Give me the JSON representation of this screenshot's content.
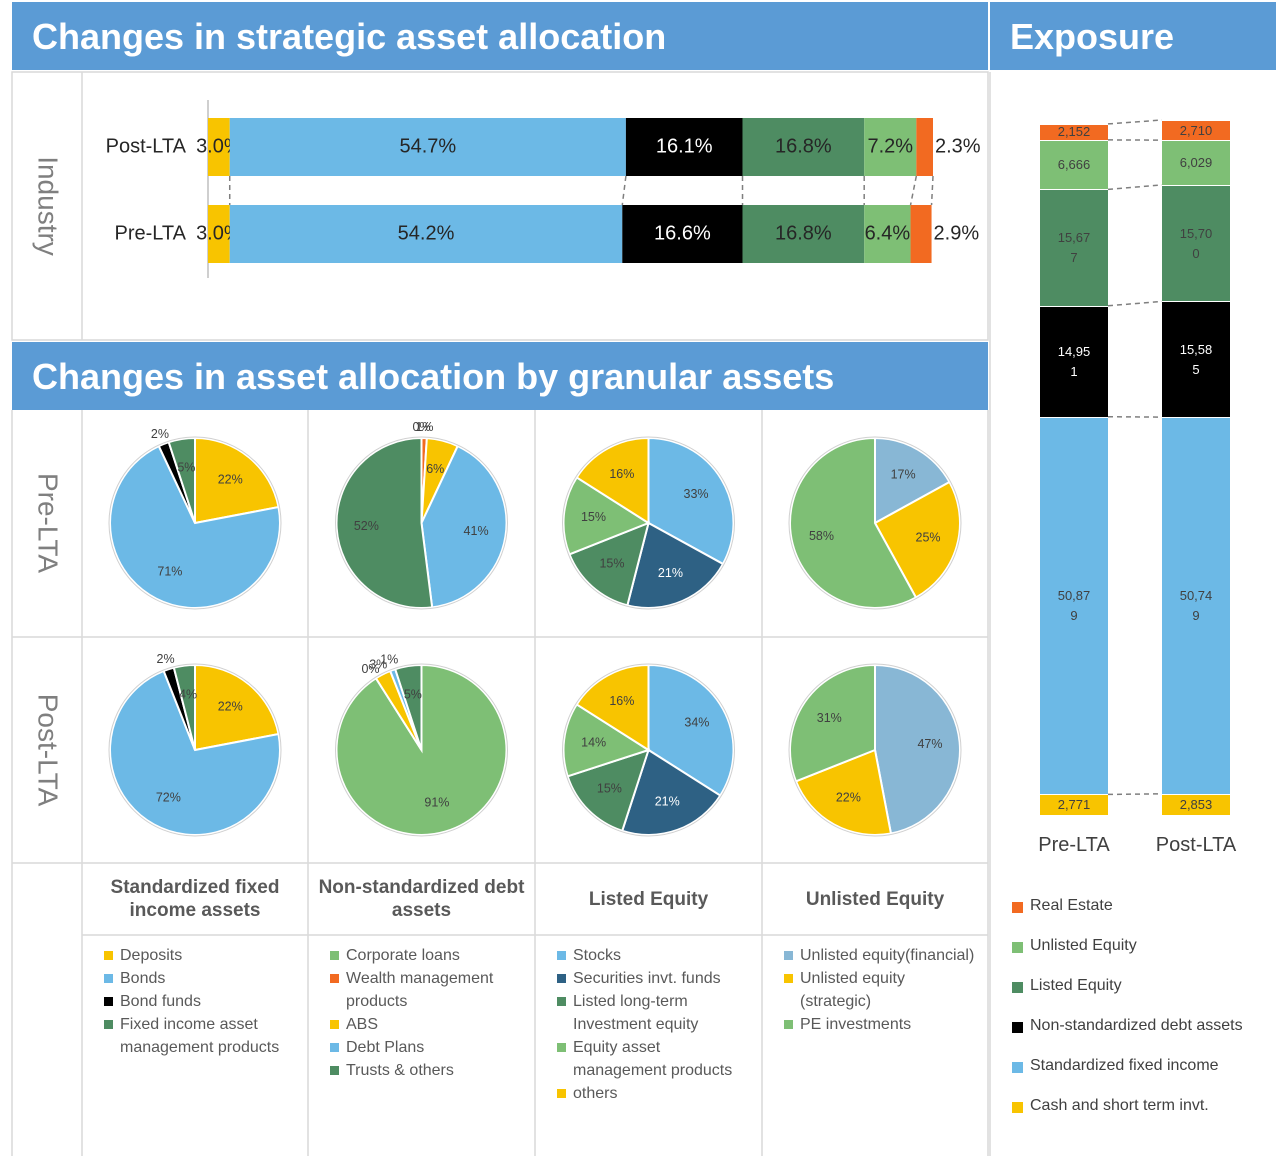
{
  "chart_data": [
    {
      "type": "bar",
      "orientation": "horizontal",
      "stacked": true,
      "title": "Changes in strategic asset allocation",
      "y_label": "Industry",
      "categories": [
        "Post-LTA",
        "Pre-LTA"
      ],
      "series": [
        {
          "color": "#f8c400",
          "values": [
            3.0,
            3.0
          ],
          "value_labels": [
            "3.0%",
            "3.0%"
          ]
        },
        {
          "color": "#6cb9e6",
          "values": [
            54.7,
            54.2
          ],
          "value_labels": [
            "54.7%",
            "54.2%"
          ]
        },
        {
          "color": "#000000",
          "values": [
            16.1,
            16.6
          ],
          "value_labels": [
            "16.1%",
            "16.6%"
          ]
        },
        {
          "color": "#4e8c62",
          "values": [
            16.8,
            16.8
          ],
          "value_labels": [
            "16.8%",
            "16.8%"
          ]
        },
        {
          "color": "#7ebf75",
          "values": [
            7.2,
            6.4
          ],
          "value_labels": [
            "7.2%",
            "6.4%"
          ]
        },
        {
          "color": "#f26a21",
          "values": [
            2.3,
            2.9
          ],
          "value_labels": [
            "2.3%",
            "2.9%"
          ]
        }
      ]
    },
    {
      "type": "bar",
      "orientation": "vertical",
      "stacked": true,
      "title": "Exposure",
      "categories": [
        "Pre-LTA",
        "Post-LTA"
      ],
      "legend": "bottom",
      "series": [
        {
          "name": "Cash and short term invt.",
          "color": "#f8c400",
          "values": [
            2771,
            2853
          ],
          "value_labels": [
            "2,771",
            "2,853"
          ]
        },
        {
          "name": "Standardized fixed income",
          "color": "#6cb9e6",
          "values": [
            50879,
            50749
          ],
          "value_labels": [
            "50,879",
            "50,749"
          ]
        },
        {
          "name": "Non-standardized debt assets",
          "color": "#000000",
          "values": [
            14951,
            15585
          ],
          "value_labels": [
            "14,951",
            "15,585"
          ]
        },
        {
          "name": "Listed Equity",
          "color": "#4e8c62",
          "values": [
            15677,
            15700
          ],
          "value_labels": [
            "15,677",
            "15,700"
          ]
        },
        {
          "name": "Unlisted Equity",
          "color": "#7ebf75",
          "values": [
            6666,
            6029
          ],
          "value_labels": [
            "6,666",
            "6,029"
          ]
        },
        {
          "name": "Real Estate",
          "color": "#f26a21",
          "values": [
            2152,
            2710
          ],
          "value_labels": [
            "2,152",
            "2,710"
          ]
        }
      ]
    },
    {
      "type": "pie",
      "title": "Changes in asset allocation by granular assets",
      "rows": [
        "Pre-LTA",
        "Post-LTA"
      ],
      "groups": [
        {
          "title": "Standardized fixed income assets",
          "categories": [
            "Deposits",
            "Bonds",
            "Bond funds",
            "Fixed income asset management products"
          ],
          "colors": [
            "#f8c400",
            "#6cb9e6",
            "#000000",
            "#4e8c62"
          ],
          "values": [
            [
              22,
              71,
              2,
              5
            ],
            [
              22,
              72,
              2,
              4
            ]
          ],
          "value_labels": [
            [
              "22%",
              "71%",
              "2%",
              "5%"
            ],
            [
              "22%",
              "72%",
              "2%",
              "4%"
            ]
          ]
        },
        {
          "title": "Non-standardized debt assets",
          "categories": [
            "Corporate loans",
            "Wealth management products",
            "ABS",
            "Debt Plans",
            "Trusts & others"
          ],
          "colors": [
            "#7ebf75",
            "#f26a21",
            "#f8c400",
            "#6cb9e6",
            "#4e8c62"
          ],
          "values": [
            [
              0,
              1,
              6,
              41,
              52
            ],
            [
              91,
              0,
              3,
              1,
              5
            ]
          ],
          "value_labels": [
            [
              "0%",
              "1%",
              "6%",
              "41%",
              "52%"
            ],
            [
              "91%",
              "0%",
              "3%",
              "1%",
              "5%"
            ]
          ]
        },
        {
          "title": "Listed Equity",
          "categories": [
            "Stocks",
            "Securities invt. funds",
            "Listed long-term Investment equity",
            "Equity asset management products",
            "others"
          ],
          "colors": [
            "#6cb9e6",
            "#2e6184",
            "#4e8c62",
            "#7ebf75",
            "#f8c400"
          ],
          "values": [
            [
              33,
              21,
              15,
              15,
              16
            ],
            [
              34,
              21,
              15,
              14,
              16
            ]
          ],
          "value_labels": [
            [
              "33%",
              "21%",
              "15%",
              "15%",
              "16%"
            ],
            [
              "34%",
              "21%",
              "15%",
              "14%",
              "16%"
            ]
          ]
        },
        {
          "title": "Unlisted Equity",
          "categories": [
            "Unlisted equity(financial)",
            "Unlisted equity (strategic)",
            "PE investments"
          ],
          "colors": [
            "#88b7d5",
            "#f8c400",
            "#7ebf75"
          ],
          "values": [
            [
              17,
              25,
              58
            ],
            [
              47,
              22,
              31
            ]
          ],
          "value_labels": [
            [
              "17%",
              "25%",
              "58%"
            ],
            [
              "47%",
              "22%",
              "31%"
            ]
          ]
        }
      ]
    }
  ]
}
